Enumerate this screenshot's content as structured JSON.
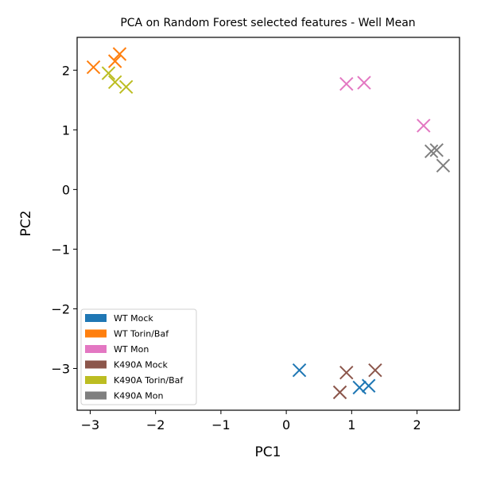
{
  "chart_data": {
    "type": "scatter",
    "title": "PCA on Random Forest selected features - Well Mean",
    "xlabel": "PC1",
    "ylabel": "PC2",
    "xlim": [
      -3.2,
      2.65
    ],
    "ylim": [
      -3.7,
      2.55
    ],
    "xticks": [
      -3,
      -2,
      -1,
      0,
      1,
      2
    ],
    "yticks": [
      -3,
      -2,
      -1,
      0,
      1,
      2
    ],
    "xtick_labels": [
      "−3",
      "−2",
      "−1",
      "0",
      "1",
      "2"
    ],
    "ytick_labels": [
      "−3",
      "−2",
      "−1",
      "0",
      "1",
      "2"
    ],
    "marker": "x",
    "grid": false,
    "legend_position": "lower-left",
    "series": [
      {
        "name": "WT Mock",
        "color": "#1f77b4",
        "points": [
          [
            0.2,
            -3.03
          ],
          [
            1.12,
            -3.32
          ],
          [
            1.26,
            -3.29
          ]
        ]
      },
      {
        "name": "WT Torin/Baf",
        "color": "#ff7f0e",
        "points": [
          [
            -2.95,
            2.05
          ],
          [
            -2.62,
            2.15
          ],
          [
            -2.55,
            2.27
          ]
        ]
      },
      {
        "name": "WT Mon",
        "color": "#e377c2",
        "points": [
          [
            0.92,
            1.77
          ],
          [
            1.19,
            1.79
          ],
          [
            2.1,
            1.07
          ]
        ]
      },
      {
        "name": "K490A Mock",
        "color": "#8c564b",
        "points": [
          [
            0.82,
            -3.4
          ],
          [
            0.92,
            -3.07
          ],
          [
            1.36,
            -3.03
          ]
        ]
      },
      {
        "name": "K490A Torin/Baf",
        "color": "#bcbd22",
        "points": [
          [
            -2.72,
            1.95
          ],
          [
            -2.62,
            1.8
          ],
          [
            -2.45,
            1.72
          ]
        ]
      },
      {
        "name": "K490A Mon",
        "color": "#7f7f7f",
        "points": [
          [
            2.22,
            0.64
          ],
          [
            2.3,
            0.66
          ],
          [
            2.4,
            0.4
          ]
        ]
      }
    ]
  }
}
